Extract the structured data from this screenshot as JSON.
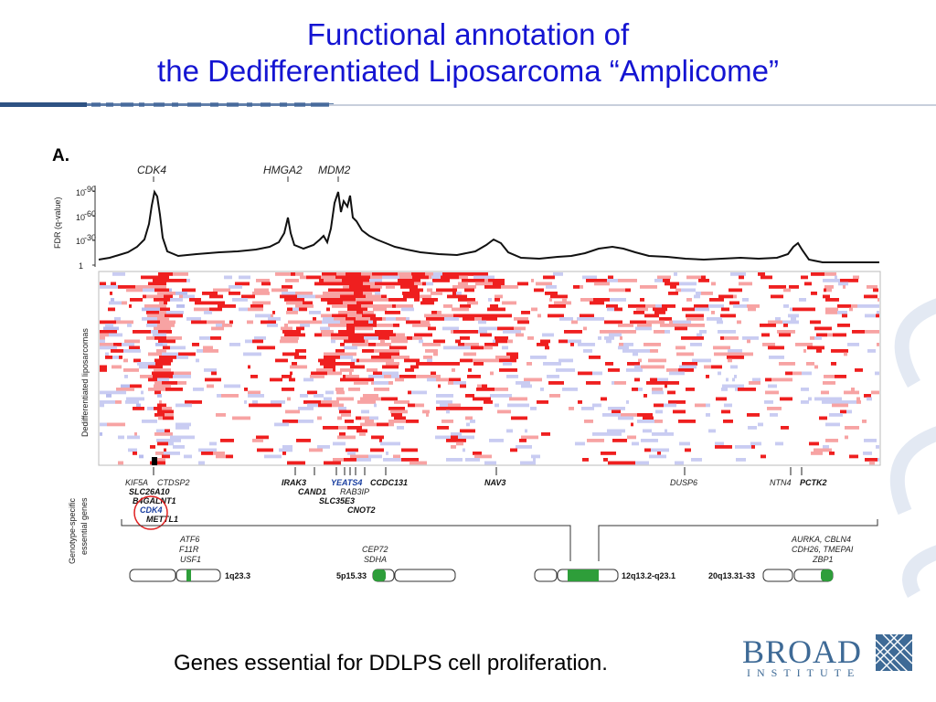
{
  "slide": {
    "title_line1": "Functional annotation of",
    "title_line2": "the Dedifferentiated Liposarcoma “Amplicome”",
    "caption": "Genes essential for DDLPS cell proliferation.",
    "panel_label": "A.",
    "logo_text": "BROAD",
    "logo_subtext": "INSTITUTE",
    "title_color": "#1414d2"
  },
  "figure": {
    "peak_labels": [
      "CDK4",
      "HMGA2",
      "MDM2"
    ],
    "fdr_axis_label": "FDR (q-value)",
    "fdr_ticks": [
      "10",
      "-90",
      "10",
      "-60",
      "10",
      "-30",
      "1"
    ],
    "heatmap_label": "Dedifferentiated liposarcomas",
    "essential_label_line1": "Genotype-specific",
    "essential_label_line2": "essential genes",
    "top_genes": {
      "g1": "KIF5A",
      "g2": "CTDSP2",
      "g3": "SLC26A10",
      "g4": "B4GALNT1",
      "g5": "CDK4",
      "g6": "METTL1",
      "g7": "IRAK3",
      "g8": "CAND1",
      "g9": "YEATS4",
      "g10": "RAB3IP",
      "g11": "SLC35E3",
      "g12": "CCDC131",
      "g13": "CNOT2",
      "g14": "NAV3",
      "g15": "DUSP6",
      "g16": "NTN4",
      "g17": "PCTK2"
    },
    "bottom_genes": {
      "b1": "ATF6",
      "b2": "F11R",
      "b3": "USF1",
      "b4": "CEP72",
      "b5": "SDHA",
      "b6": "AURKA, CBLN4",
      "b7": "CDH26, TMEPAI",
      "b8": "ZBP1"
    },
    "bands": [
      "1q23.3",
      "5p15.33",
      "12q13.2-q23.1",
      "20q13.31-33"
    ]
  }
}
